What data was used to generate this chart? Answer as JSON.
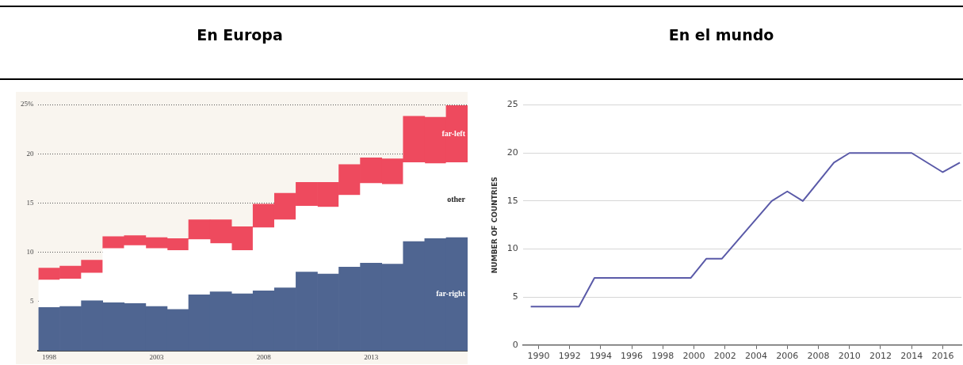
{
  "chart_data": [
    {
      "type": "bar",
      "title": "En Europa",
      "stacked": true,
      "legend": false,
      "grid": "y",
      "x": [
        1998,
        1999,
        2000,
        2001,
        2002,
        2003,
        2004,
        2005,
        2006,
        2007,
        2008,
        2009,
        2010,
        2011,
        2012,
        2013,
        2014,
        2015,
        2016,
        2017
      ],
      "xlim": [
        1997.5,
        2017.5
      ],
      "xticks": [
        1998,
        2003,
        2008,
        2013
      ],
      "ylim": [
        0,
        25
      ],
      "yticks": [
        5,
        10,
        15,
        20,
        {
          "value": 25,
          "label": "25%"
        }
      ],
      "series": [
        {
          "name": "far-right",
          "color": "#4f6591",
          "values": [
            4.4,
            4.5,
            5.1,
            4.9,
            4.8,
            4.5,
            4.2,
            5.7,
            6.0,
            5.8,
            6.1,
            6.4,
            8.0,
            7.8,
            8.5,
            8.9,
            8.8,
            11.1,
            11.4,
            11.5
          ]
        },
        {
          "name": "other",
          "color": "#ffffff",
          "values": [
            2.8,
            2.8,
            2.8,
            5.5,
            5.9,
            5.9,
            6.0,
            5.6,
            4.9,
            4.4,
            6.4,
            6.9,
            6.7,
            6.8,
            7.3,
            8.1,
            8.1,
            8.0,
            7.6,
            7.6
          ]
        },
        {
          "name": "far-left",
          "color": "#ee4a5e",
          "values": [
            1.2,
            1.3,
            1.3,
            1.2,
            1.0,
            1.1,
            1.2,
            2.0,
            2.4,
            2.4,
            2.4,
            2.7,
            2.4,
            2.5,
            3.1,
            2.6,
            2.6,
            4.7,
            4.7,
            5.8
          ]
        }
      ]
    },
    {
      "type": "line",
      "title": "En el mundo",
      "ylabel": "NUMBER OF COUNTRIES",
      "legend": false,
      "grid": "y",
      "marker": "none",
      "x": [
        1989.5,
        1992.6,
        1993.6,
        1999.8,
        2000.8,
        2001.8,
        2005,
        2006,
        2007,
        2009,
        2010,
        2014,
        2016,
        2017.1
      ],
      "xlim": [
        1989,
        2017.2
      ],
      "xticks": [
        1990,
        1992,
        1994,
        1996,
        1998,
        2000,
        2002,
        2004,
        2006,
        2008,
        2010,
        2012,
        2014,
        2016
      ],
      "ylim": [
        0,
        25
      ],
      "yticks": [
        0,
        5,
        10,
        15,
        20,
        25
      ],
      "series": [
        {
          "color": "#5a5aa8",
          "values": [
            4,
            4,
            7,
            7,
            9,
            9,
            15,
            16,
            15,
            19,
            20,
            20,
            18,
            19
          ]
        }
      ]
    }
  ]
}
